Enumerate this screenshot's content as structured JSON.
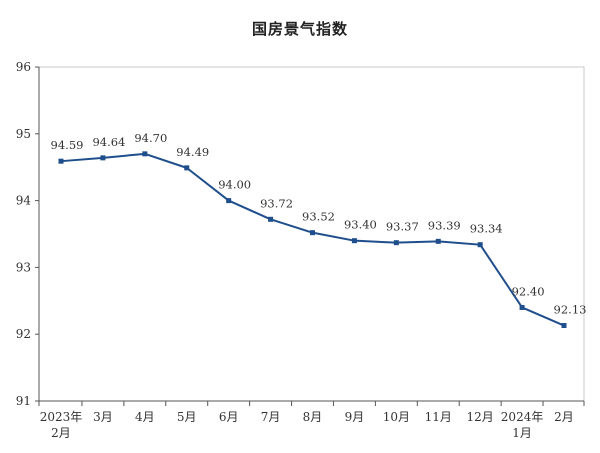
{
  "chart_data": {
    "type": "line",
    "title": "国房景气指数",
    "xlabel": "",
    "ylabel": "",
    "categories": [
      [
        "2023年",
        "2月"
      ],
      [
        "3月"
      ],
      [
        "4月"
      ],
      [
        "5月"
      ],
      [
        "6月"
      ],
      [
        "7月"
      ],
      [
        "8月"
      ],
      [
        "9月"
      ],
      [
        "10月"
      ],
      [
        "11月"
      ],
      [
        "12月"
      ],
      [
        "2024年",
        "1月"
      ],
      [
        "2月"
      ]
    ],
    "series": [
      {
        "values": [
          94.59,
          94.64,
          94.7,
          94.49,
          94.0,
          93.72,
          93.52,
          93.4,
          93.37,
          93.39,
          93.34,
          92.4,
          92.13
        ],
        "color": "#1f4e8c"
      }
    ],
    "data_labels": [
      "94.59",
      "94.64",
      "94.70",
      "94.49",
      "94.00",
      "93.72",
      "93.52",
      "93.40",
      "93.37",
      "93.39",
      "93.34",
      "92.40",
      "92.13"
    ],
    "yticks": [
      91,
      92,
      93,
      94,
      95,
      96
    ],
    "ylim": [
      91,
      96
    ],
    "grid": false,
    "legend": "none"
  }
}
